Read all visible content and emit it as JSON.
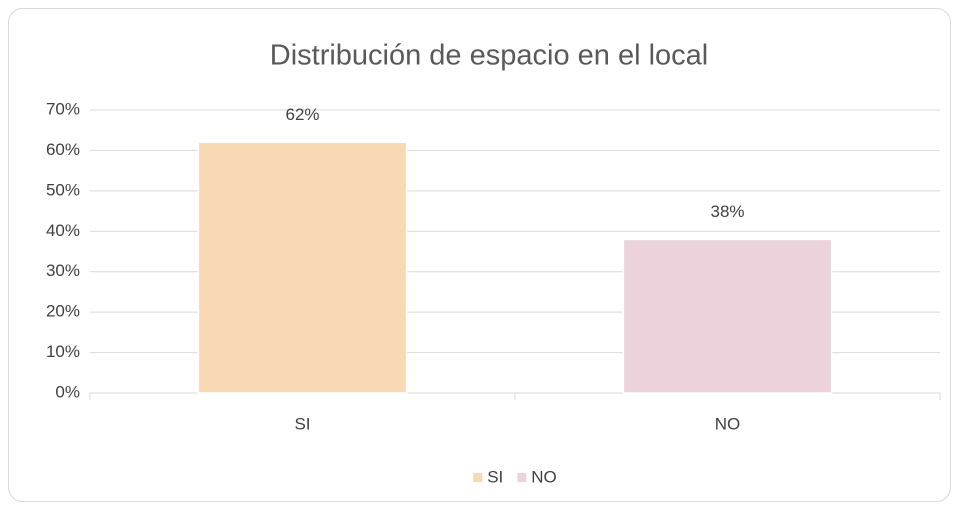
{
  "chart_data": {
    "type": "bar",
    "title": "Distribución de espacio en el local",
    "categories": [
      "SI",
      "NO"
    ],
    "values": [
      62,
      38
    ],
    "value_labels": [
      "62%",
      "38%"
    ],
    "colors": [
      "#f9d9b4",
      "#ecd3db"
    ],
    "ylim": [
      0,
      70
    ],
    "yticks": [
      {
        "value": 0,
        "label": "0%"
      },
      {
        "value": 10,
        "label": "10%"
      },
      {
        "value": 20,
        "label": "20%"
      },
      {
        "value": 30,
        "label": "30%"
      },
      {
        "value": 40,
        "label": "40%"
      },
      {
        "value": 50,
        "label": "50%"
      },
      {
        "value": 60,
        "label": "60%"
      },
      {
        "value": 70,
        "label": "70%"
      }
    ],
    "grid": true,
    "legend": "bottom"
  }
}
